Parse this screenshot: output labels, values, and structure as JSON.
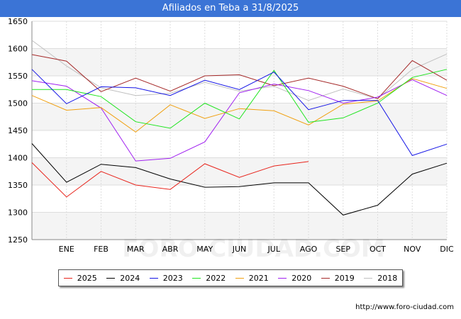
{
  "title": "Afiliados en Teba a 31/8/2025",
  "footer": "http://www.foro-ciudad.com",
  "watermark": "FORO-CIUDAD.COM",
  "chart_data": {
    "type": "line",
    "categories": [
      "",
      "ENE",
      "FEB",
      "MAR",
      "ABR",
      "MAY",
      "JUN",
      "JUL",
      "AGO",
      "SEP",
      "OCT",
      "NOV",
      "DIC"
    ],
    "ylim": [
      1250,
      1650
    ],
    "yticks": [
      1250,
      1300,
      1350,
      1400,
      1450,
      1500,
      1550,
      1600,
      1650
    ],
    "series": [
      {
        "name": "2025",
        "color": "#e8241c",
        "values": [
          1391,
          1328,
          1375,
          1350,
          1342,
          1389,
          1364,
          1385,
          1393,
          null,
          null,
          null,
          null
        ]
      },
      {
        "name": "2024",
        "color": "#000000",
        "values": [
          1426,
          1355,
          1388,
          1382,
          1361,
          1346,
          1347,
          1354,
          1354,
          1295,
          1313,
          1370,
          1390
        ]
      },
      {
        "name": "2023",
        "color": "#1515e6",
        "values": [
          1562,
          1499,
          1530,
          1528,
          1514,
          1542,
          1525,
          1557,
          1488,
          1505,
          1505,
          1404,
          1425
        ]
      },
      {
        "name": "2022",
        "color": "#1fe51f",
        "values": [
          1525,
          1525,
          1512,
          1466,
          1454,
          1500,
          1471,
          1560,
          1465,
          1473,
          1500,
          1547,
          1562
        ]
      },
      {
        "name": "2021",
        "color": "#f0a010",
        "values": [
          1514,
          1487,
          1492,
          1447,
          1497,
          1472,
          1490,
          1486,
          1460,
          1498,
          1504,
          1545,
          1527
        ]
      },
      {
        "name": "2020",
        "color": "#a020f0",
        "values": [
          1541,
          1531,
          1491,
          1394,
          1399,
          1429,
          1519,
          1535,
          1523,
          1500,
          1511,
          1543,
          1514
        ]
      },
      {
        "name": "2019",
        "color": "#a52a2a",
        "values": [
          1589,
          1577,
          1521,
          1546,
          1522,
          1550,
          1552,
          1532,
          1546,
          1531,
          1508,
          1578,
          1542
        ]
      },
      {
        "name": "2018",
        "color": "#c0c0c0",
        "values": [
          1615,
          1568,
          1528,
          1514,
          1518,
          1538,
          1522,
          1531,
          1505,
          1526,
          1508,
          1562,
          1590
        ]
      }
    ]
  }
}
